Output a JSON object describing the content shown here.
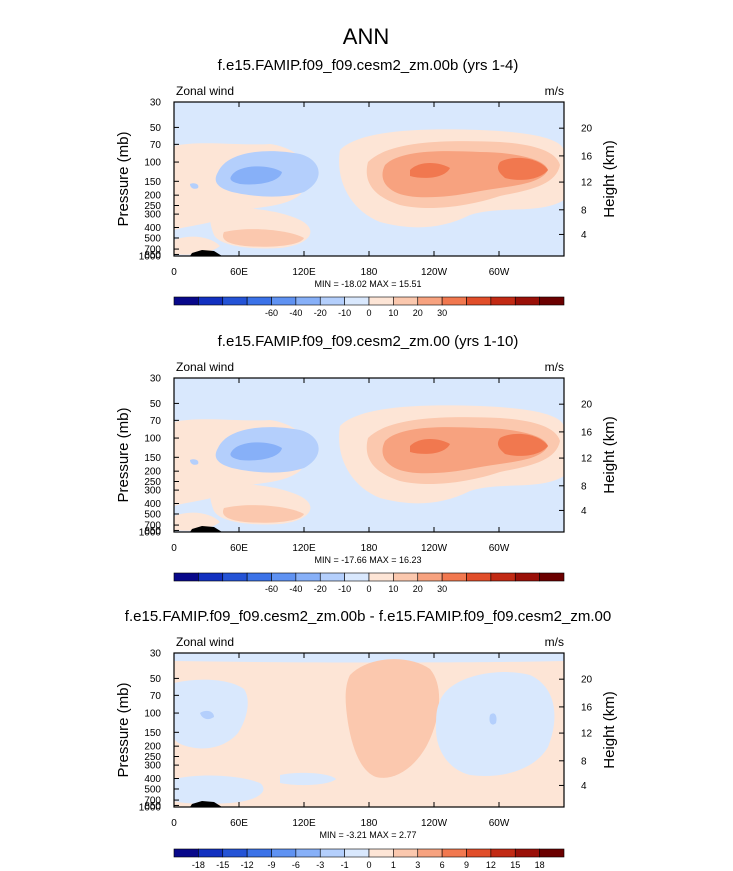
{
  "figure": {
    "title": "ANN"
  },
  "chart_data": [
    {
      "type": "heatmap",
      "title": "f.e15.FAMIP.f09_f09.cesm2_zm.00b (yrs 1-4)",
      "left_label": "Zonal wind",
      "right_label": "m/s",
      "ylabel": "Pressure (mb)",
      "y2label": "Height (km)",
      "xticks": [
        "0",
        "60E",
        "120E",
        "180",
        "120W",
        "60W"
      ],
      "yticks": [
        "30",
        "50",
        "70",
        "100",
        "150",
        "200",
        "250",
        "300",
        "400",
        "500",
        "700",
        "850",
        "1000"
      ],
      "y2ticks": [
        "20",
        "16",
        "12",
        "8",
        "4"
      ],
      "stats": "MIN = -18.02  MAX =  15.51",
      "colorbar_ticks": [
        "-60",
        "-40",
        "-20",
        "-10",
        "0",
        "10",
        "20",
        "30"
      ],
      "colors": [
        "#08088a",
        "#1230c0",
        "#2453d6",
        "#3b72e8",
        "#5f92f2",
        "#87b0f8",
        "#b4cffc",
        "#d9e8fd",
        "#fde5d6",
        "#fbc8ae",
        "#f7a27f",
        "#f1784f",
        "#e14e2a",
        "#c22a14",
        "#9a1008",
        "#6b0000"
      ]
    },
    {
      "type": "heatmap",
      "title": "f.e15.FAMIP.f09_f09.cesm2_zm.00 (yrs 1-10)",
      "left_label": "Zonal wind",
      "right_label": "m/s",
      "ylabel": "Pressure (mb)",
      "y2label": "Height (km)",
      "xticks": [
        "0",
        "60E",
        "120E",
        "180",
        "120W",
        "60W"
      ],
      "yticks": [
        "30",
        "50",
        "70",
        "100",
        "150",
        "200",
        "250",
        "300",
        "400",
        "500",
        "700",
        "850",
        "1000"
      ],
      "y2ticks": [
        "20",
        "16",
        "12",
        "8",
        "4"
      ],
      "stats": "MIN = -17.66  MAX =  16.23",
      "colorbar_ticks": [
        "-60",
        "-40",
        "-20",
        "-10",
        "0",
        "10",
        "20",
        "30"
      ],
      "colors": [
        "#08088a",
        "#1230c0",
        "#2453d6",
        "#3b72e8",
        "#5f92f2",
        "#87b0f8",
        "#b4cffc",
        "#d9e8fd",
        "#fde5d6",
        "#fbc8ae",
        "#f7a27f",
        "#f1784f",
        "#e14e2a",
        "#c22a14",
        "#9a1008",
        "#6b0000"
      ]
    },
    {
      "type": "heatmap",
      "title": "f.e15.FAMIP.f09_f09.cesm2_zm.00b - f.e15.FAMIP.f09_f09.cesm2_zm.00",
      "left_label": "Zonal wind",
      "right_label": "m/s",
      "ylabel": "Pressure (mb)",
      "y2label": "Height (km)",
      "xticks": [
        "0",
        "60E",
        "120E",
        "180",
        "120W",
        "60W"
      ],
      "yticks": [
        "30",
        "50",
        "70",
        "100",
        "150",
        "200",
        "250",
        "300",
        "400",
        "500",
        "700",
        "850",
        "1000"
      ],
      "y2ticks": [
        "20",
        "16",
        "12",
        "8",
        "4"
      ],
      "stats": "MIN = -3.21  MAX =  2.77",
      "colorbar_ticks": [
        "-18",
        "-15",
        "-12",
        "-9",
        "-6",
        "-3",
        "-1",
        "0",
        "1",
        "3",
        "6",
        "9",
        "12",
        "15",
        "18"
      ],
      "colors": [
        "#08088a",
        "#1230c0",
        "#2453d6",
        "#3b72e8",
        "#5f92f2",
        "#87b0f8",
        "#b4cffc",
        "#d9e8fd",
        "#fde5d6",
        "#fbc8ae",
        "#f7a27f",
        "#f1784f",
        "#e14e2a",
        "#c22a14",
        "#9a1008",
        "#6b0000"
      ]
    }
  ]
}
